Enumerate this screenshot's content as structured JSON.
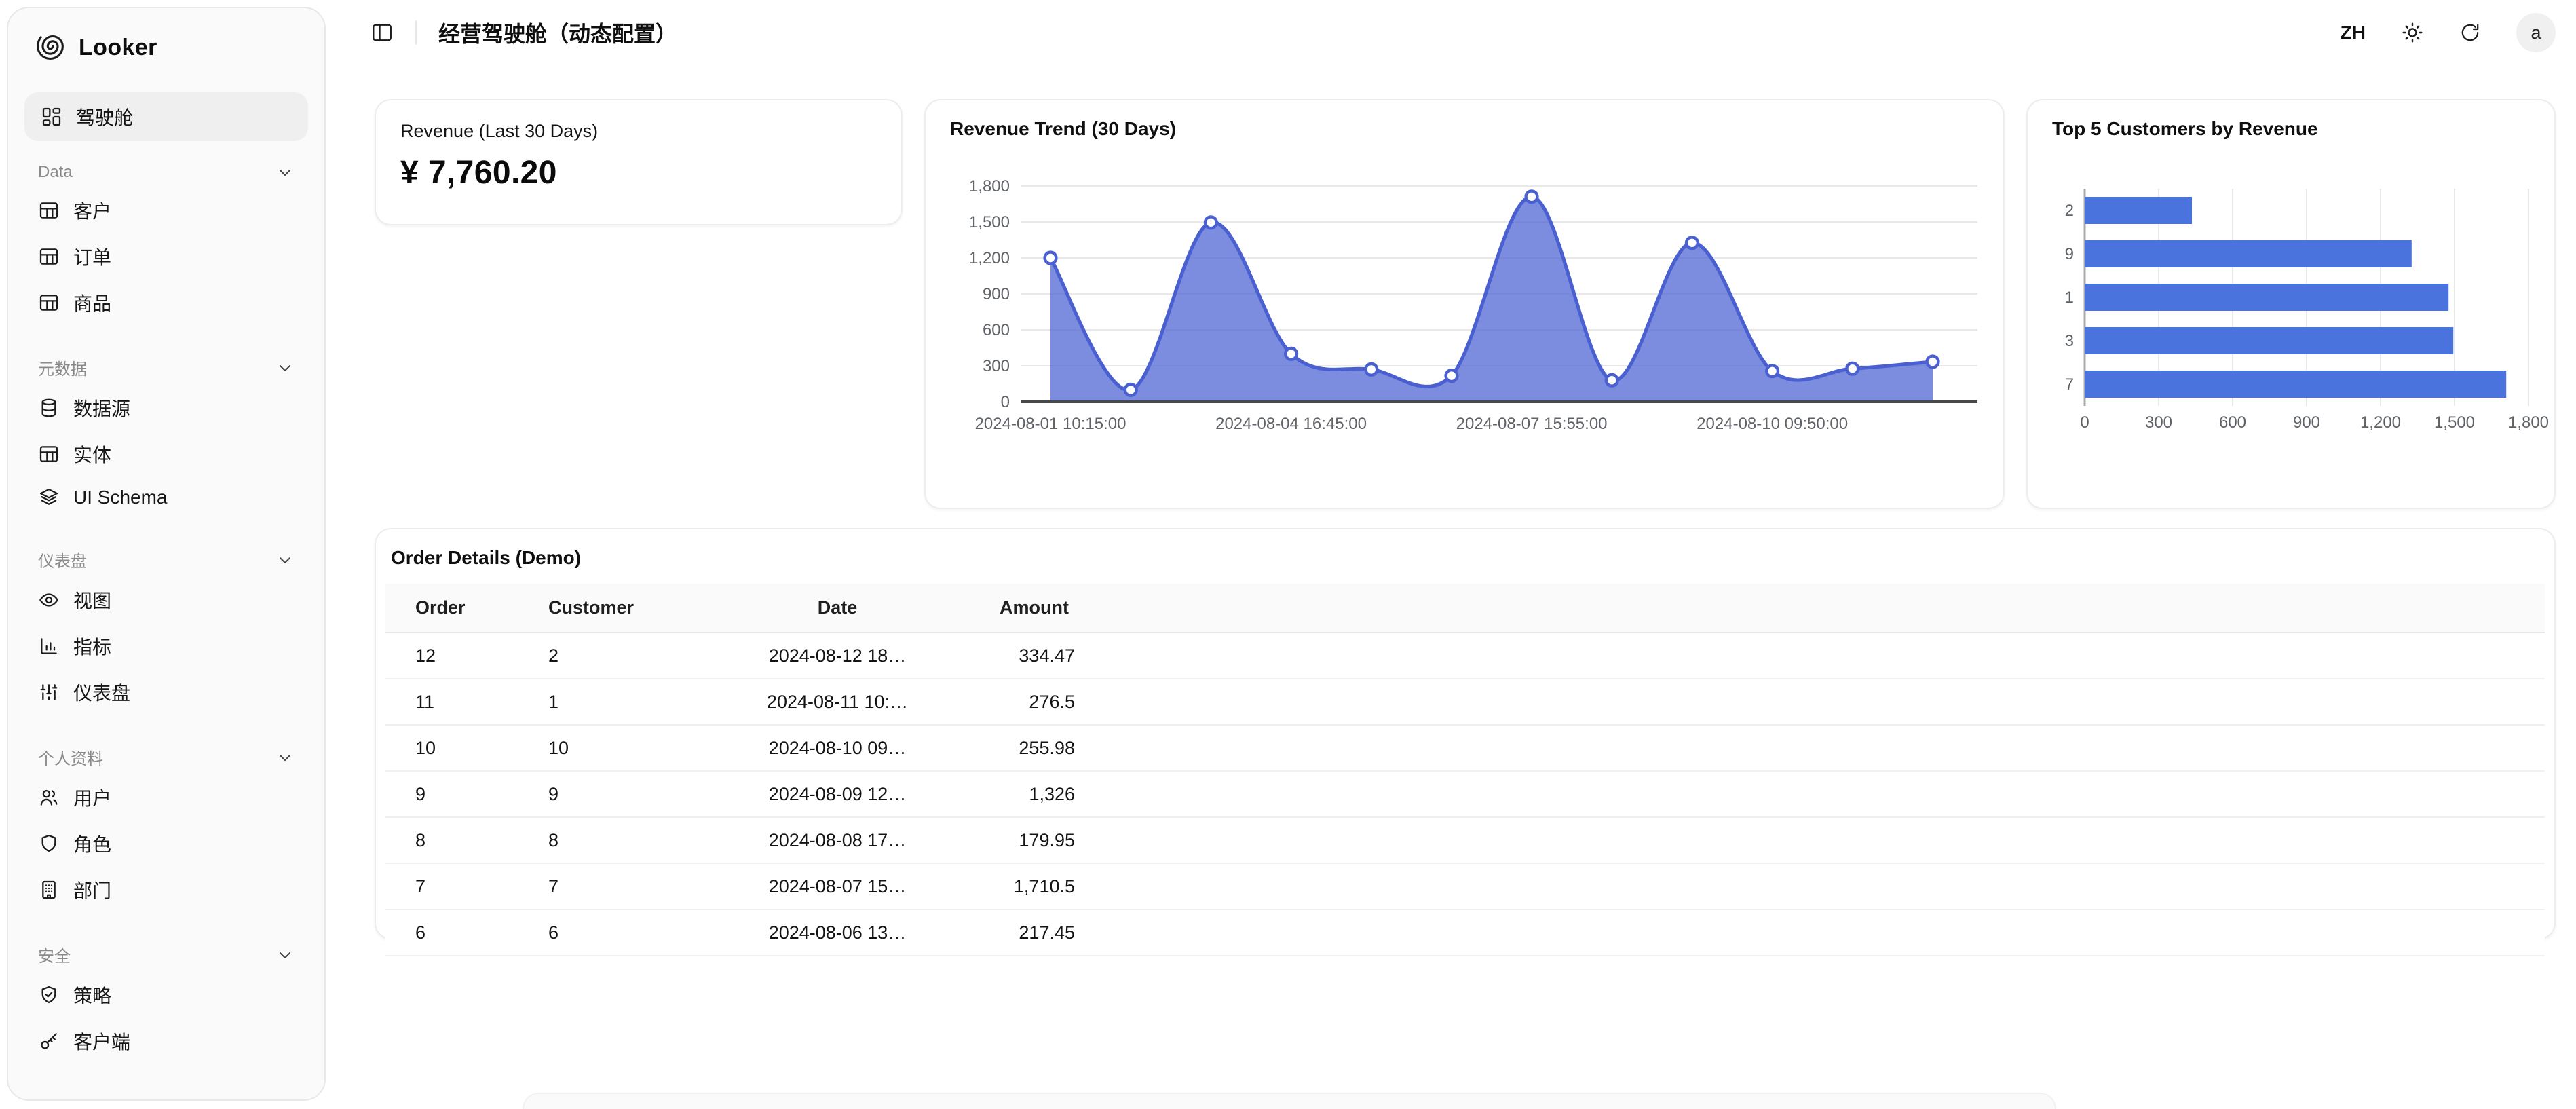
{
  "sidebar": {
    "logo_text": "Looker",
    "primary_item": {
      "label": "驾驶舱",
      "icon": "layout-dashboard"
    },
    "sections": [
      {
        "label": "Data",
        "items": [
          {
            "label": "客户",
            "icon": "table"
          },
          {
            "label": "订单",
            "icon": "table"
          },
          {
            "label": "商品",
            "icon": "table"
          }
        ]
      },
      {
        "label": "元数据",
        "items": [
          {
            "label": "数据源",
            "icon": "database"
          },
          {
            "label": "实体",
            "icon": "table"
          },
          {
            "label": "UI Schema",
            "icon": "layers"
          }
        ]
      },
      {
        "label": "仪表盘",
        "items": [
          {
            "label": "视图",
            "icon": "eye"
          },
          {
            "label": "指标",
            "icon": "chart-column"
          },
          {
            "label": "仪表盘",
            "icon": "sliders"
          }
        ]
      },
      {
        "label": "个人资料",
        "items": [
          {
            "label": "用户",
            "icon": "users"
          },
          {
            "label": "角色",
            "icon": "shield"
          },
          {
            "label": "部门",
            "icon": "building"
          }
        ]
      },
      {
        "label": "安全",
        "items": [
          {
            "label": "策略",
            "icon": "shield-check"
          },
          {
            "label": "客户端",
            "icon": "key"
          }
        ]
      }
    ]
  },
  "header": {
    "title": "经营驾驶舱（动态配置）",
    "lang_button": "ZH",
    "avatar_initial": "a"
  },
  "kpi_card": {
    "title": "Revenue (Last 30 Days)",
    "value": "¥ 7,760.20"
  },
  "chart_data": [
    {
      "type": "area",
      "title": "Revenue Trend (30 Days)",
      "x": [
        "2024-08-01",
        "2024-08-02",
        "2024-08-03",
        "2024-08-04",
        "2024-08-05",
        "2024-08-06",
        "2024-08-07",
        "2024-08-08",
        "2024-08-09",
        "2024-08-10",
        "2024-08-11",
        "2024-08-12"
      ],
      "values": [
        1200,
        100,
        1495,
        400,
        270,
        217.45,
        1710.5,
        179.95,
        1326,
        255.98,
        276.5,
        334.47
      ],
      "x_tick_indices": [
        0,
        3,
        6,
        9
      ],
      "x_tick_labels": [
        "2024-08-01 10:15:00",
        "2024-08-04 16:45:00",
        "2024-08-07 15:55:00",
        "2024-08-10 09:50:00"
      ],
      "y_ticks": [
        0,
        300,
        600,
        900,
        1200,
        1500,
        1800
      ],
      "ylim": [
        0,
        1800
      ],
      "grid": "horizontal",
      "legend": "none",
      "line_color": "#4a60d1",
      "fill_color": "#4a60d1",
      "fill_opacity": 0.72,
      "marker": "circle-white"
    },
    {
      "type": "bar",
      "orientation": "horizontal",
      "title": "Top 5 Customers by Revenue",
      "categories": [
        "2",
        "9",
        "1",
        "3",
        "7"
      ],
      "values": [
        435,
        1326,
        1476,
        1495,
        1710
      ],
      "x_ticks": [
        0,
        300,
        600,
        900,
        1200,
        1500,
        1800
      ],
      "xlim": [
        0,
        1800
      ],
      "grid": "vertical",
      "legend": "none",
      "bar_color": "#4a73dd"
    }
  ],
  "table": {
    "title": "Order Details (Demo)",
    "columns": [
      "Order",
      "Customer",
      "Date",
      "Amount"
    ],
    "rows": [
      {
        "order": "12",
        "customer": "2",
        "date": "2024-08-12 18…",
        "amount": "334.47"
      },
      {
        "order": "11",
        "customer": "1",
        "date": "2024-08-11 10:…",
        "amount": "276.5"
      },
      {
        "order": "10",
        "customer": "10",
        "date": "2024-08-10 09…",
        "amount": "255.98"
      },
      {
        "order": "9",
        "customer": "9",
        "date": "2024-08-09 12…",
        "amount": "1,326"
      },
      {
        "order": "8",
        "customer": "8",
        "date": "2024-08-08 17…",
        "amount": "179.95"
      },
      {
        "order": "7",
        "customer": "7",
        "date": "2024-08-07 15…",
        "amount": "1,710.5"
      },
      {
        "order": "6",
        "customer": "6",
        "date": "2024-08-06 13…",
        "amount": "217.45"
      }
    ]
  },
  "colors": {
    "accent_line": "#4a60d1",
    "accent_bar": "#4a73dd",
    "sidebar_bg": "#fafafa",
    "active_pill_bg": "#efeff0",
    "card_border": "#ededee",
    "grid_line": "#e8e8e9",
    "axis_baseline": "#47484a",
    "axis_text": "#5f6368",
    "table_header_bg": "#fafafa"
  }
}
